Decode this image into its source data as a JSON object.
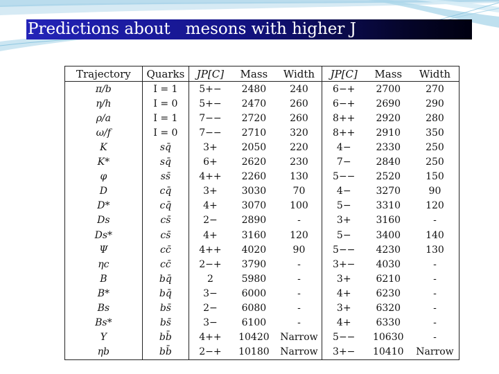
{
  "slide": {
    "title": "Predictions about   mesons with higher J"
  },
  "table": {
    "headers": [
      "Trajectory",
      "Quarks",
      "JP[C]",
      "Mass",
      "Width",
      "JP[C]",
      "Mass",
      "Width"
    ],
    "rows": [
      [
        "π/b",
        "I = 1",
        "5+−",
        "2480",
        "240",
        "6−+",
        "2700",
        "270"
      ],
      [
        "η/h",
        "I = 0",
        "5+−",
        "2470",
        "260",
        "6−+",
        "2690",
        "290"
      ],
      [
        "ρ/a",
        "I = 1",
        "7−−",
        "2720",
        "260",
        "8++",
        "2920",
        "280"
      ],
      [
        "ω/f",
        "I = 0",
        "7−−",
        "2710",
        "320",
        "8++",
        "2910",
        "350"
      ],
      [
        "K",
        "sq̄",
        "3+",
        "2050",
        "220",
        "4−",
        "2330",
        "250"
      ],
      [
        "K*",
        "sq̄",
        "6+",
        "2620",
        "230",
        "7−",
        "2840",
        "250"
      ],
      [
        "φ",
        "ss̄",
        "4++",
        "2260",
        "130",
        "5−−",
        "2520",
        "150"
      ],
      [
        "D",
        "cq̄",
        "3+",
        "3030",
        "70",
        "4−",
        "3270",
        "90"
      ],
      [
        "D*",
        "cq̄",
        "4+",
        "3070",
        "100",
        "5−",
        "3310",
        "120"
      ],
      [
        "Ds",
        "cs̄",
        "2−",
        "2890",
        "-",
        "3+",
        "3160",
        "-"
      ],
      [
        "Ds*",
        "cs̄",
        "4+",
        "3160",
        "120",
        "5−",
        "3400",
        "140"
      ],
      [
        "Ψ",
        "cc̄",
        "4++",
        "4020",
        "90",
        "5−−",
        "4230",
        "130"
      ],
      [
        "ηc",
        "cc̄",
        "2−+",
        "3790",
        "-",
        "3+−",
        "4030",
        "-"
      ],
      [
        "B",
        "bq̄",
        "2",
        "5980",
        "-",
        "3+",
        "6210",
        "-"
      ],
      [
        "B*",
        "bq̄",
        "3−",
        "6000",
        "-",
        "4+",
        "6230",
        "-"
      ],
      [
        "Bs",
        "bs̄",
        "2−",
        "6080",
        "-",
        "3+",
        "6320",
        "-"
      ],
      [
        "Bs*",
        "bs̄",
        "3−",
        "6100",
        "-",
        "4+",
        "6330",
        "-"
      ],
      [
        "Υ",
        "bb̄",
        "4++",
        "10420",
        "Narrow",
        "5−−",
        "10630",
        "-"
      ],
      [
        "ηb",
        "bb̄",
        "2−+",
        "10180",
        "Narrow",
        "3+−",
        "10410",
        "Narrow"
      ]
    ]
  }
}
